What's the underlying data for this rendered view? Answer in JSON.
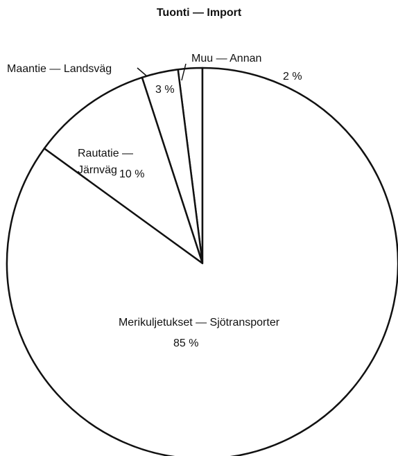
{
  "chart_data": {
    "type": "pie",
    "title": "Tuonti — Import",
    "categories": [
      "Merikuljetukset — Sjötransporter",
      "Rautatie — Järnväg",
      "Maantie — Landsväg",
      "Muu — Annan"
    ],
    "values": [
      85,
      10,
      3,
      2
    ],
    "value_labels": [
      "85 %",
      "10 %",
      "3 %",
      "2 %"
    ],
    "color": "#ffffff"
  }
}
